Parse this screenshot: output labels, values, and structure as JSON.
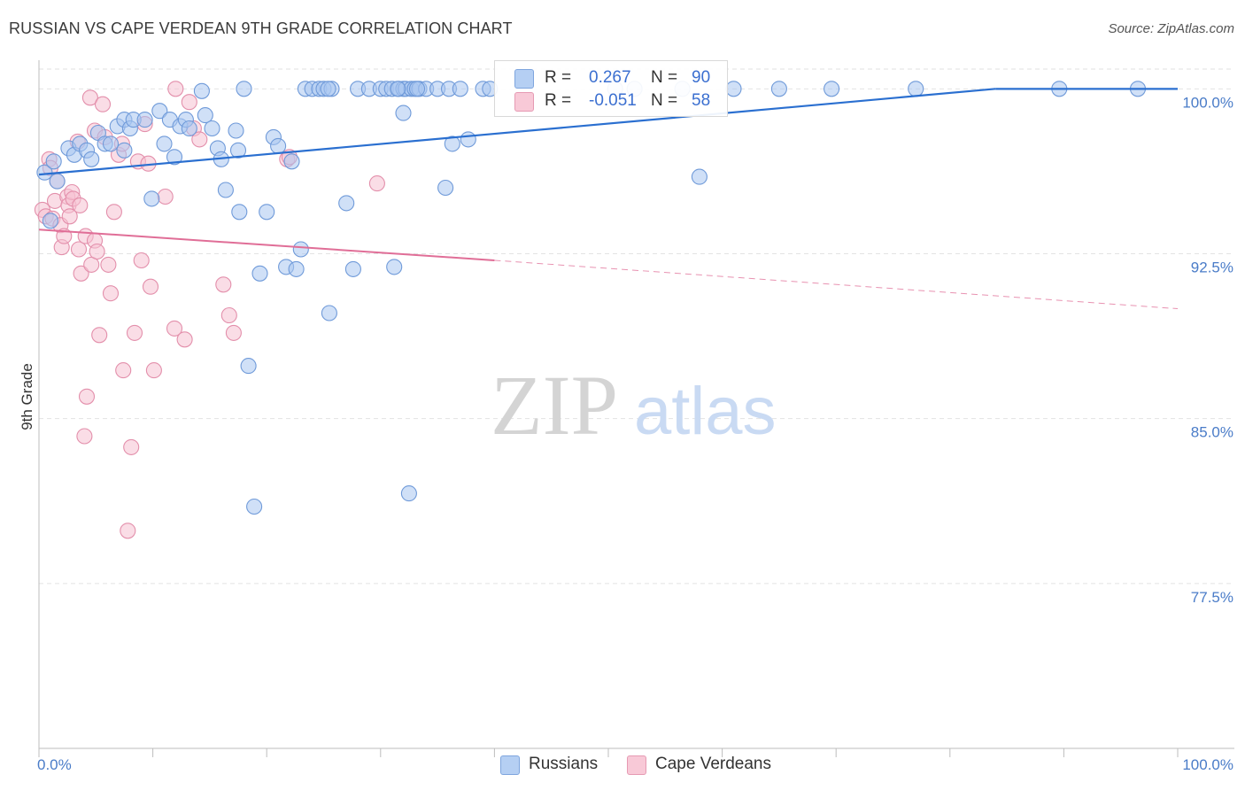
{
  "title": "RUSSIAN VS CAPE VERDEAN 9TH GRADE CORRELATION CHART",
  "source": "Source: ZipAtlas.com",
  "watermark": {
    "zip": "ZIP",
    "atlas": "atlas"
  },
  "legend_top": {
    "rows": [
      {
        "r_label": "R =",
        "r_value": "0.267",
        "n_label": "N =",
        "n_value": "90"
      },
      {
        "r_label": "R =",
        "r_value": "-0.051",
        "n_label": "N =",
        "n_value": "58"
      }
    ]
  },
  "legend_bottom": {
    "items": [
      "Russians",
      "Cape Verdeans"
    ]
  },
  "colors": {
    "blue_fill": "#a9c7f0",
    "blue_stroke": "#6f9ad9",
    "blue_line": "#2a6fd0",
    "pink_fill": "#f6c1d1",
    "pink_stroke": "#e38fab",
    "pink_line": "#e06e97",
    "tick_text": "#4a7cc8",
    "grid": "#e2e2e2"
  },
  "chart_data": {
    "type": "scatter",
    "title": "RUSSIAN VS CAPE VERDEAN 9TH GRADE CORRELATION CHART",
    "xlabel": "",
    "ylabel": "9th Grade",
    "xlim": [
      0,
      100
    ],
    "ylim": [
      70.0,
      100.9
    ],
    "x_tick_labels": [
      {
        "v": 0,
        "label": "0.0%"
      },
      {
        "v": 100,
        "label": "100.0%"
      }
    ],
    "y_tick_labels": [
      {
        "v": 100.0,
        "label": "100.0%"
      },
      {
        "v": 92.5,
        "label": "92.5%"
      },
      {
        "v": 85.0,
        "label": "85.0%"
      },
      {
        "v": 77.5,
        "label": "77.5%"
      }
    ],
    "series": [
      {
        "name": "Russians",
        "color": "blue",
        "R": 0.267,
        "N": 90,
        "trend": {
          "x0": 0,
          "y0": 96.1,
          "x1": 84,
          "y1": 100.0,
          "dash_to": null
        },
        "points": [
          [
            0.5,
            96.2
          ],
          [
            1.0,
            94.0
          ],
          [
            1.3,
            96.7
          ],
          [
            1.6,
            95.8
          ],
          [
            2.6,
            97.3
          ],
          [
            3.1,
            97.0
          ],
          [
            3.6,
            97.5
          ],
          [
            4.2,
            97.2
          ],
          [
            4.6,
            96.8
          ],
          [
            5.2,
            98.0
          ],
          [
            5.8,
            97.5
          ],
          [
            6.3,
            97.5
          ],
          [
            6.9,
            98.3
          ],
          [
            7.5,
            98.6
          ],
          [
            7.5,
            97.2
          ],
          [
            8.0,
            98.2
          ],
          [
            8.3,
            98.6
          ],
          [
            9.3,
            98.6
          ],
          [
            9.9,
            95.0
          ],
          [
            10.6,
            99.0
          ],
          [
            11.0,
            97.5
          ],
          [
            11.5,
            98.6
          ],
          [
            11.9,
            96.9
          ],
          [
            12.4,
            98.3
          ],
          [
            12.9,
            98.6
          ],
          [
            13.2,
            98.2
          ],
          [
            14.3,
            99.9
          ],
          [
            14.6,
            98.8
          ],
          [
            15.2,
            98.2
          ],
          [
            15.7,
            97.3
          ],
          [
            16.0,
            96.8
          ],
          [
            16.4,
            95.4
          ],
          [
            17.3,
            98.1
          ],
          [
            17.5,
            97.2
          ],
          [
            17.6,
            94.4
          ],
          [
            18.4,
            87.4
          ],
          [
            18.9,
            81.0
          ],
          [
            19.4,
            91.6
          ],
          [
            18.0,
            100.0
          ],
          [
            20.0,
            94.4
          ],
          [
            20.6,
            97.8
          ],
          [
            21.0,
            97.4
          ],
          [
            21.7,
            91.9
          ],
          [
            22.2,
            96.7
          ],
          [
            22.6,
            91.8
          ],
          [
            23.0,
            92.7
          ],
          [
            23.4,
            100.0
          ],
          [
            24.0,
            100.0
          ],
          [
            24.6,
            100.0
          ],
          [
            25.0,
            100.0
          ],
          [
            25.5,
            89.8
          ],
          [
            25.7,
            100.0
          ],
          [
            25.4,
            100.0
          ],
          [
            27.0,
            94.8
          ],
          [
            27.6,
            91.8
          ],
          [
            28.0,
            100.0
          ],
          [
            29.0,
            100.0
          ],
          [
            30.0,
            100.0
          ],
          [
            30.5,
            100.0
          ],
          [
            31.0,
            100.0
          ],
          [
            31.2,
            91.9
          ],
          [
            31.6,
            100.0
          ],
          [
            32.0,
            100.0
          ],
          [
            32.2,
            100.0
          ],
          [
            32.7,
            100.0
          ],
          [
            33.0,
            100.0
          ],
          [
            33.4,
            100.0
          ],
          [
            34.0,
            100.0
          ],
          [
            35.0,
            100.0
          ],
          [
            31.5,
            100.0
          ],
          [
            32.5,
            81.6
          ],
          [
            32.0,
            98.9
          ],
          [
            33.2,
            100.0
          ],
          [
            35.7,
            95.5
          ],
          [
            36.0,
            100.0
          ],
          [
            36.3,
            97.5
          ],
          [
            37.7,
            97.7
          ],
          [
            37.0,
            100.0
          ],
          [
            39.0,
            100.0
          ],
          [
            39.6,
            100.0
          ],
          [
            50.6,
            100.0
          ],
          [
            52.3,
            100.0
          ],
          [
            56.5,
            100.0
          ],
          [
            58.0,
            96.0
          ],
          [
            61.0,
            100.0
          ],
          [
            65.0,
            100.0
          ],
          [
            69.6,
            100.0
          ],
          [
            77.0,
            100.0
          ],
          [
            89.6,
            100.0
          ],
          [
            96.5,
            100.0
          ]
        ]
      },
      {
        "name": "Cape Verdeans",
        "color": "pink",
        "R": -0.051,
        "N": 58,
        "trend": {
          "x0": 0,
          "y0": 93.6,
          "x1": 40,
          "y1": 92.2,
          "dash_to": [
            100,
            90.0
          ]
        },
        "points": [
          [
            0.3,
            94.5
          ],
          [
            0.6,
            94.2
          ],
          [
            0.9,
            96.8
          ],
          [
            1.2,
            94.1
          ],
          [
            1.4,
            94.9
          ],
          [
            1.6,
            95.8
          ],
          [
            1.9,
            93.8
          ],
          [
            2.0,
            92.8
          ],
          [
            2.2,
            93.3
          ],
          [
            2.5,
            95.1
          ],
          [
            2.6,
            94.7
          ],
          [
            2.7,
            94.2
          ],
          [
            2.9,
            95.3
          ],
          [
            3.0,
            95.0
          ],
          [
            3.4,
            97.6
          ],
          [
            3.5,
            92.7
          ],
          [
            3.6,
            94.7
          ],
          [
            3.7,
            91.6
          ],
          [
            4.0,
            84.2
          ],
          [
            4.1,
            93.3
          ],
          [
            4.2,
            86.0
          ],
          [
            4.5,
            99.6
          ],
          [
            4.6,
            92.0
          ],
          [
            4.9,
            93.1
          ],
          [
            4.9,
            98.1
          ],
          [
            5.1,
            92.6
          ],
          [
            5.3,
            88.8
          ],
          [
            5.6,
            99.3
          ],
          [
            5.8,
            97.8
          ],
          [
            6.1,
            92.0
          ],
          [
            6.3,
            90.7
          ],
          [
            6.6,
            94.4
          ],
          [
            7.0,
            97.0
          ],
          [
            7.3,
            97.5
          ],
          [
            7.4,
            87.2
          ],
          [
            7.8,
            79.9
          ],
          [
            8.1,
            83.7
          ],
          [
            8.4,
            88.9
          ],
          [
            8.7,
            96.7
          ],
          [
            9.0,
            92.2
          ],
          [
            9.3,
            98.4
          ],
          [
            9.8,
            91.0
          ],
          [
            10.1,
            87.2
          ],
          [
            11.1,
            95.1
          ],
          [
            11.9,
            89.1
          ],
          [
            12.8,
            88.6
          ],
          [
            13.2,
            99.4
          ],
          [
            13.6,
            98.2
          ],
          [
            14.1,
            97.7
          ],
          [
            16.2,
            91.1
          ],
          [
            16.7,
            89.7
          ],
          [
            17.1,
            88.9
          ],
          [
            21.8,
            96.8
          ],
          [
            22.0,
            96.9
          ],
          [
            29.7,
            95.7
          ],
          [
            9.6,
            96.6
          ],
          [
            12.0,
            100.0
          ],
          [
            1.0,
            96.4
          ]
        ]
      }
    ]
  }
}
